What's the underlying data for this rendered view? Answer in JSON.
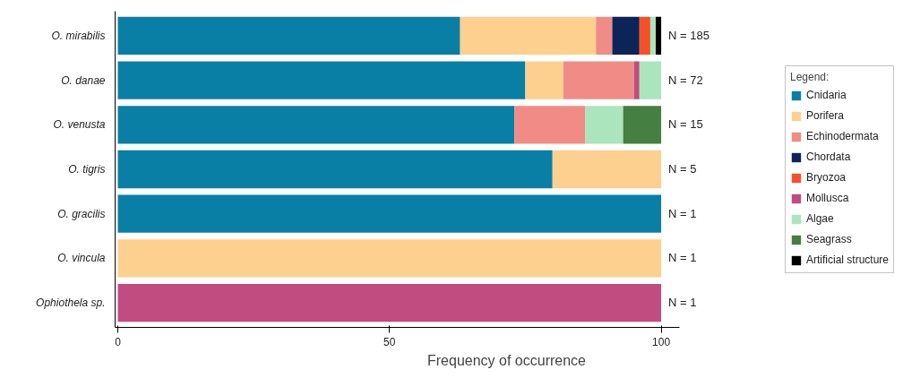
{
  "chart_data": {
    "type": "bar",
    "orientation": "horizontal",
    "stacked": true,
    "xlabel": "Frequency of occurrence",
    "legend_title": "Legend:",
    "legend": "right",
    "categories": [
      "O. mirabilis",
      "O. danae",
      "O. venusta",
      "O. tigris",
      "O. gracilis",
      "O. vincula",
      "Ophiothela sp."
    ],
    "series": [
      {
        "name": "Cnidaria",
        "color": "#0a7fa6",
        "values": [
          63,
          75,
          73,
          80,
          100,
          null,
          null
        ]
      },
      {
        "name": "Porifera",
        "color": "#fdd090",
        "values": [
          25,
          7,
          null,
          20,
          null,
          100,
          null
        ]
      },
      {
        "name": "Echinodermata",
        "color": "#f08c85",
        "values": [
          3,
          13,
          13,
          null,
          null,
          null,
          null
        ]
      },
      {
        "name": "Chordata",
        "color": "#0c2458",
        "values": [
          5,
          null,
          null,
          null,
          null,
          null,
          null
        ]
      },
      {
        "name": "Bryozoa",
        "color": "#f4512a",
        "values": [
          2,
          null,
          null,
          null,
          null,
          null,
          null
        ]
      },
      {
        "name": "Mollusca",
        "color": "#c04c80",
        "values": [
          null,
          1,
          null,
          null,
          null,
          null,
          100
        ]
      },
      {
        "name": "Algae",
        "color": "#abe5bd",
        "values": [
          1,
          4,
          7,
          null,
          null,
          null,
          null
        ]
      },
      {
        "name": "Seagrass",
        "color": "#457f42",
        "values": [
          null,
          null,
          7,
          null,
          null,
          null,
          null
        ]
      },
      {
        "name": "Artificial structure",
        "color": "#000000",
        "values": [
          1,
          null,
          null,
          null,
          null,
          null,
          null
        ]
      }
    ],
    "xlim": [
      -0.5,
      103.3
    ],
    "xticks": [
      0,
      50,
      100
    ],
    "annotations": [
      "N = 185",
      "N = 72",
      "N = 15",
      "N = 5",
      "N = 1",
      "N = 1",
      "N = 1"
    ]
  }
}
